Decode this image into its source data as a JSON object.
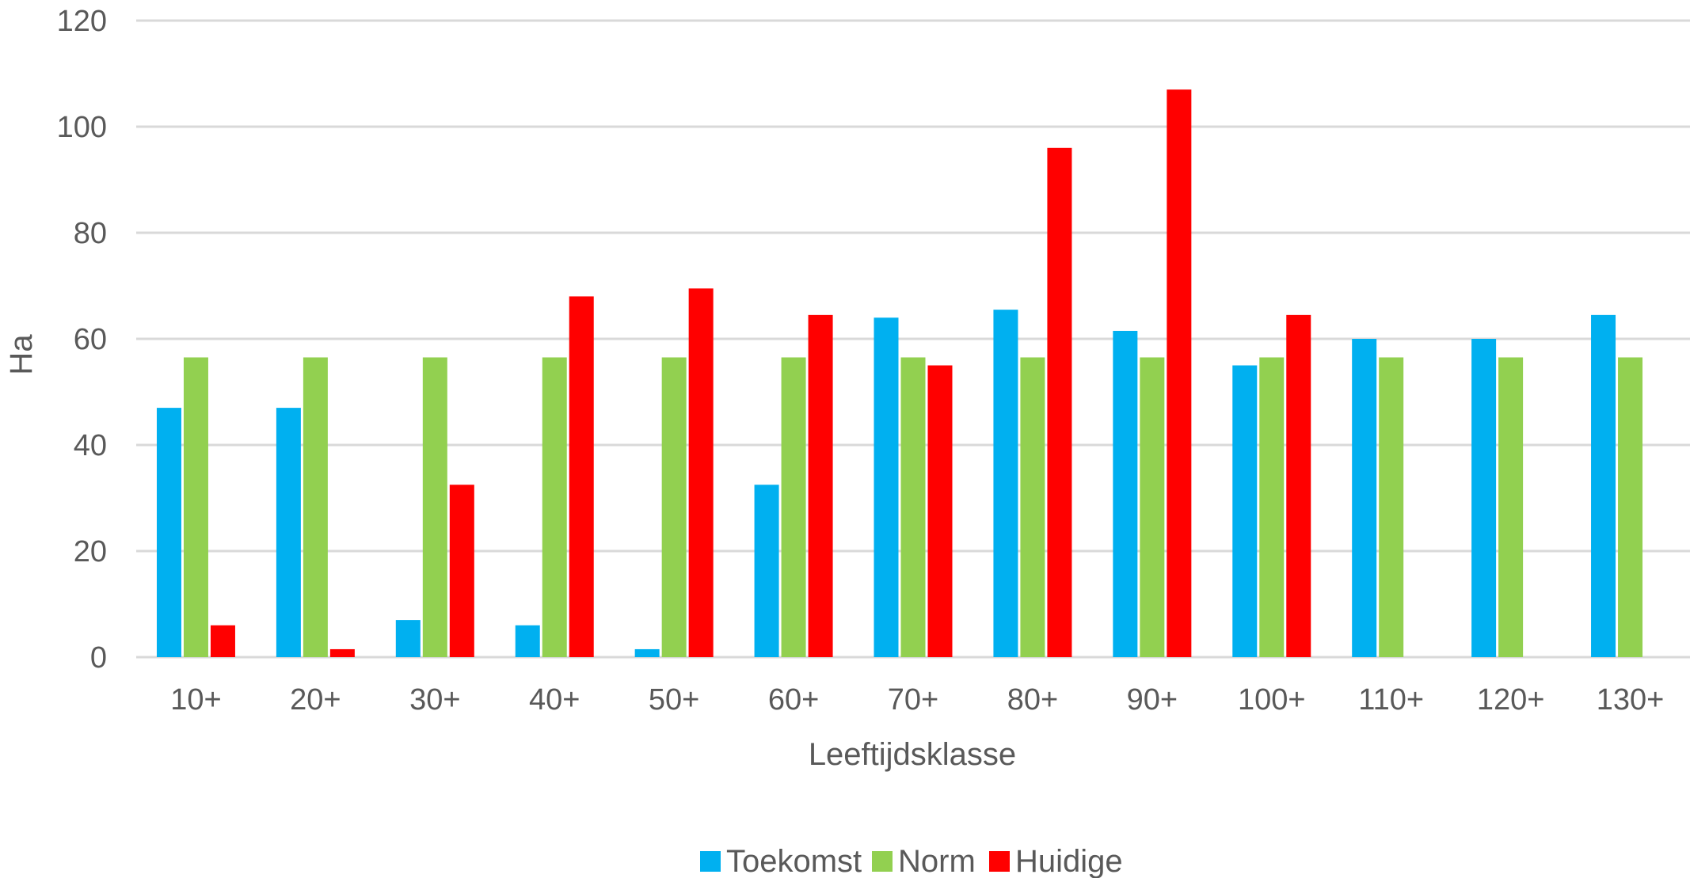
{
  "chart_data": {
    "type": "bar",
    "title": "",
    "xlabel": "Leeftijdsklasse",
    "ylabel": "Ha",
    "ylim": [
      0,
      120
    ],
    "yticks": [
      0,
      20,
      40,
      60,
      80,
      100,
      120
    ],
    "grid": true,
    "legend_position": "bottom",
    "categories": [
      "10+",
      "20+",
      "30+",
      "40+",
      "50+",
      "60+",
      "70+",
      "80+",
      "90+",
      "100+",
      "110+",
      "120+",
      "130+"
    ],
    "series": [
      {
        "name": "Toekomst",
        "color": "#00b0f0",
        "values": [
          47,
          47,
          7,
          6,
          1.5,
          32.5,
          64,
          65.5,
          61.5,
          55,
          60,
          60,
          64.5
        ]
      },
      {
        "name": "Norm",
        "color": "#92d050",
        "values": [
          56.5,
          56.5,
          56.5,
          56.5,
          56.5,
          56.5,
          56.5,
          56.5,
          56.5,
          56.5,
          56.5,
          56.5,
          56.5
        ]
      },
      {
        "name": "Huidige",
        "color": "#ff0000",
        "values": [
          6,
          1.5,
          32.5,
          68,
          69.5,
          64.5,
          55,
          96,
          107,
          64.5,
          0,
          0,
          0
        ]
      }
    ]
  }
}
